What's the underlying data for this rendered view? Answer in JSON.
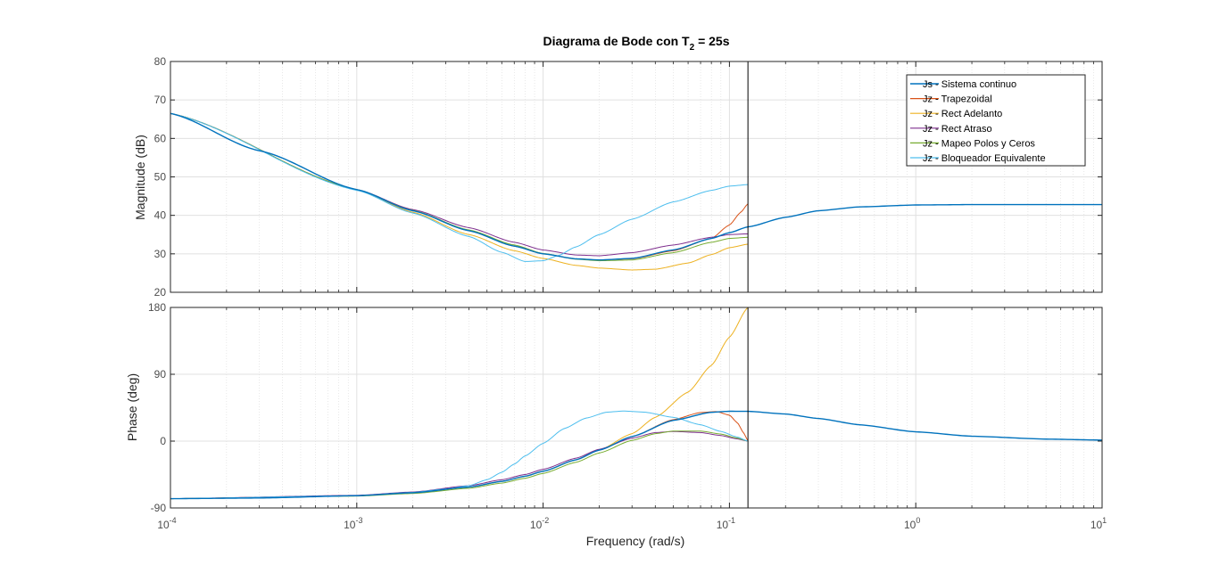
{
  "chart_data": {
    "type": "line",
    "title": {
      "main": "Diagrama de Bode con T",
      "sub": "2",
      "rest": " = 25s"
    },
    "xlabel": "Frequency  (rad/s)",
    "xscale": "log",
    "xlim": [
      0.0001,
      10
    ],
    "x_ticks": [
      {
        "base": "10",
        "exp": "-4"
      },
      {
        "base": "10",
        "exp": "-3"
      },
      {
        "base": "10",
        "exp": "-2"
      },
      {
        "base": "10",
        "exp": "-1"
      },
      {
        "base": "10",
        "exp": "0"
      },
      {
        "base": "10",
        "exp": "1"
      }
    ],
    "vertical_marker_x": 0.1257,
    "legend_position": "top-right",
    "grid": true,
    "colors": [
      "#0072BD",
      "#D95319",
      "#EDB120",
      "#7E2F8E",
      "#77AC30",
      "#4DBEEE"
    ],
    "magnitude": {
      "ylabel": "Magnitude (dB)",
      "ylim": [
        20,
        80
      ],
      "yticks": [
        "20",
        "30",
        "40",
        "50",
        "60",
        "70",
        "80"
      ],
      "series": [
        {
          "name": "Js - Sistema continuo",
          "color": "#0072BD",
          "x": [
            0.0001,
            0.0003,
            0.001,
            0.002,
            0.004,
            0.007,
            0.01,
            0.015,
            0.02,
            0.03,
            0.05,
            0.08,
            0.1,
            0.1257,
            0.2,
            0.3,
            0.5,
            1,
            2,
            5,
            10
          ],
          "y": [
            66.5,
            56.8,
            46.7,
            41.2,
            36.0,
            32.0,
            30.0,
            28.7,
            28.4,
            28.8,
            31.0,
            34.0,
            35.5,
            37.0,
            39.5,
            41.2,
            42.2,
            42.7,
            42.8,
            42.8,
            42.8
          ]
        },
        {
          "name": "Jz - Trapezoidal",
          "color": "#D95319",
          "x": [
            0.0001,
            0.001,
            0.002,
            0.004,
            0.007,
            0.01,
            0.015,
            0.02,
            0.03,
            0.05,
            0.08,
            0.1,
            0.115,
            0.1257
          ],
          "y": [
            66.5,
            46.7,
            41.2,
            36.0,
            32.0,
            30.0,
            28.7,
            28.4,
            28.7,
            30.8,
            34.0,
            37.5,
            40.8,
            43.0
          ]
        },
        {
          "name": "Jz - Rect Adelanto",
          "color": "#EDB120",
          "x": [
            0.0001,
            0.001,
            0.002,
            0.004,
            0.007,
            0.01,
            0.015,
            0.02,
            0.03,
            0.04,
            0.06,
            0.08,
            0.1,
            0.1257
          ],
          "y": [
            66.5,
            46.7,
            40.8,
            35.0,
            30.8,
            28.8,
            27.0,
            26.3,
            25.8,
            26.0,
            27.6,
            29.8,
            31.6,
            32.5
          ]
        },
        {
          "name": "Jz - Rect Atraso",
          "color": "#7E2F8E",
          "x": [
            0.0001,
            0.001,
            0.002,
            0.004,
            0.007,
            0.01,
            0.015,
            0.02,
            0.03,
            0.05,
            0.08,
            0.1,
            0.1257
          ],
          "y": [
            66.5,
            46.7,
            41.5,
            36.8,
            33.0,
            31.0,
            29.7,
            29.5,
            30.3,
            32.3,
            34.3,
            35.0,
            35.2
          ]
        },
        {
          "name": "Jz - Mapeo Polos y Ceros",
          "color": "#77AC30",
          "x": [
            0.0001,
            0.001,
            0.002,
            0.004,
            0.007,
            0.01,
            0.015,
            0.02,
            0.03,
            0.05,
            0.08,
            0.1,
            0.1257
          ],
          "y": [
            66.5,
            46.7,
            41.3,
            36.2,
            32.3,
            30.1,
            28.6,
            28.2,
            28.4,
            30.3,
            33.0,
            34.0,
            34.3
          ]
        },
        {
          "name": "Jz - Bloqueador Equivalente",
          "color": "#4DBEEE",
          "x": [
            0.0001,
            0.001,
            0.002,
            0.004,
            0.006,
            0.008,
            0.01,
            0.012,
            0.015,
            0.02,
            0.03,
            0.05,
            0.08,
            0.1,
            0.1257
          ],
          "y": [
            66.5,
            46.5,
            40.6,
            34.5,
            30.4,
            28.0,
            28.2,
            29.5,
            31.8,
            35.0,
            39.0,
            43.5,
            46.5,
            47.6,
            48.0
          ]
        }
      ]
    },
    "phase": {
      "ylabel": "Phase (deg)",
      "ylim": [
        -90,
        180
      ],
      "yticks": [
        "-90",
        "0",
        "90",
        "180"
      ],
      "series": [
        {
          "name": "Js - Sistema continuo",
          "color": "#0072BD",
          "x": [
            0.0001,
            0.0003,
            0.001,
            0.002,
            0.004,
            0.006,
            0.008,
            0.01,
            0.015,
            0.02,
            0.03,
            0.05,
            0.08,
            0.1,
            0.1257,
            0.2,
            0.3,
            0.5,
            1,
            2,
            5,
            10
          ],
          "y": [
            -77.5,
            -76.6,
            -73.5,
            -69.5,
            -61.8,
            -54.3,
            -47.3,
            -40.6,
            -25.2,
            -12.2,
            6.2,
            28.0,
            38.8,
            40.2,
            40.1,
            36.5,
            30.5,
            22.0,
            12.5,
            6.6,
            2.7,
            1.4
          ]
        },
        {
          "name": "Jz - Trapezoidal",
          "color": "#D95319",
          "x": [
            0.0001,
            0.001,
            0.002,
            0.004,
            0.006,
            0.008,
            0.01,
            0.015,
            0.02,
            0.03,
            0.05,
            0.07,
            0.085,
            0.1,
            0.11,
            0.12,
            0.1257
          ],
          "y": [
            -77.5,
            -73.5,
            -69.5,
            -61.8,
            -54.3,
            -47.3,
            -40.6,
            -25.2,
            -12.2,
            6.2,
            29.0,
            38.5,
            39.8,
            35.0,
            25.0,
            10.0,
            0.0
          ]
        },
        {
          "name": "Jz - Rect Adelanto",
          "color": "#EDB120",
          "x": [
            0.0001,
            0.001,
            0.002,
            0.004,
            0.006,
            0.008,
            0.01,
            0.015,
            0.02,
            0.03,
            0.04,
            0.06,
            0.08,
            0.1,
            0.1257
          ],
          "y": [
            -77.5,
            -73.5,
            -69.5,
            -61.8,
            -54.3,
            -47.3,
            -40.6,
            -25.2,
            -12.0,
            10.0,
            32.0,
            66.0,
            102.0,
            140.0,
            180.0
          ]
        },
        {
          "name": "Jz - Rect Atraso",
          "color": "#7E2F8E",
          "x": [
            0.0001,
            0.001,
            0.002,
            0.004,
            0.006,
            0.008,
            0.01,
            0.015,
            0.02,
            0.03,
            0.04,
            0.05,
            0.07,
            0.09,
            0.11,
            0.1257
          ],
          "y": [
            -77.5,
            -73.0,
            -68.5,
            -60.0,
            -52.0,
            -45.0,
            -38.0,
            -23.0,
            -11.0,
            4.0,
            11.5,
            13.0,
            11.5,
            7.5,
            3.0,
            0.0
          ]
        },
        {
          "name": "Jz - Mapeo Polos y Ceros",
          "color": "#77AC30",
          "x": [
            0.0001,
            0.001,
            0.002,
            0.004,
            0.006,
            0.008,
            0.01,
            0.015,
            0.02,
            0.03,
            0.04,
            0.05,
            0.07,
            0.09,
            0.11,
            0.1257
          ],
          "y": [
            -77.5,
            -74.0,
            -70.5,
            -63.5,
            -56.5,
            -50.0,
            -43.5,
            -28.5,
            -16.0,
            1.0,
            10.0,
            13.5,
            13.5,
            9.5,
            4.0,
            0.0
          ]
        },
        {
          "name": "Jz - Bloqueador Equivalente",
          "color": "#4DBEEE",
          "x": [
            0.0001,
            0.001,
            0.002,
            0.003,
            0.004,
            0.005,
            0.006,
            0.007,
            0.008,
            0.01,
            0.013,
            0.017,
            0.022,
            0.027,
            0.035,
            0.05,
            0.07,
            0.09,
            0.11,
            0.1257
          ],
          "y": [
            -77.5,
            -73.5,
            -69.0,
            -64.5,
            -60.0,
            -52.0,
            -42.0,
            -31.0,
            -20.0,
            -3.0,
            17.0,
            31.0,
            39.0,
            40.5,
            39.0,
            32.0,
            22.0,
            13.0,
            5.5,
            0.0
          ]
        }
      ]
    }
  }
}
